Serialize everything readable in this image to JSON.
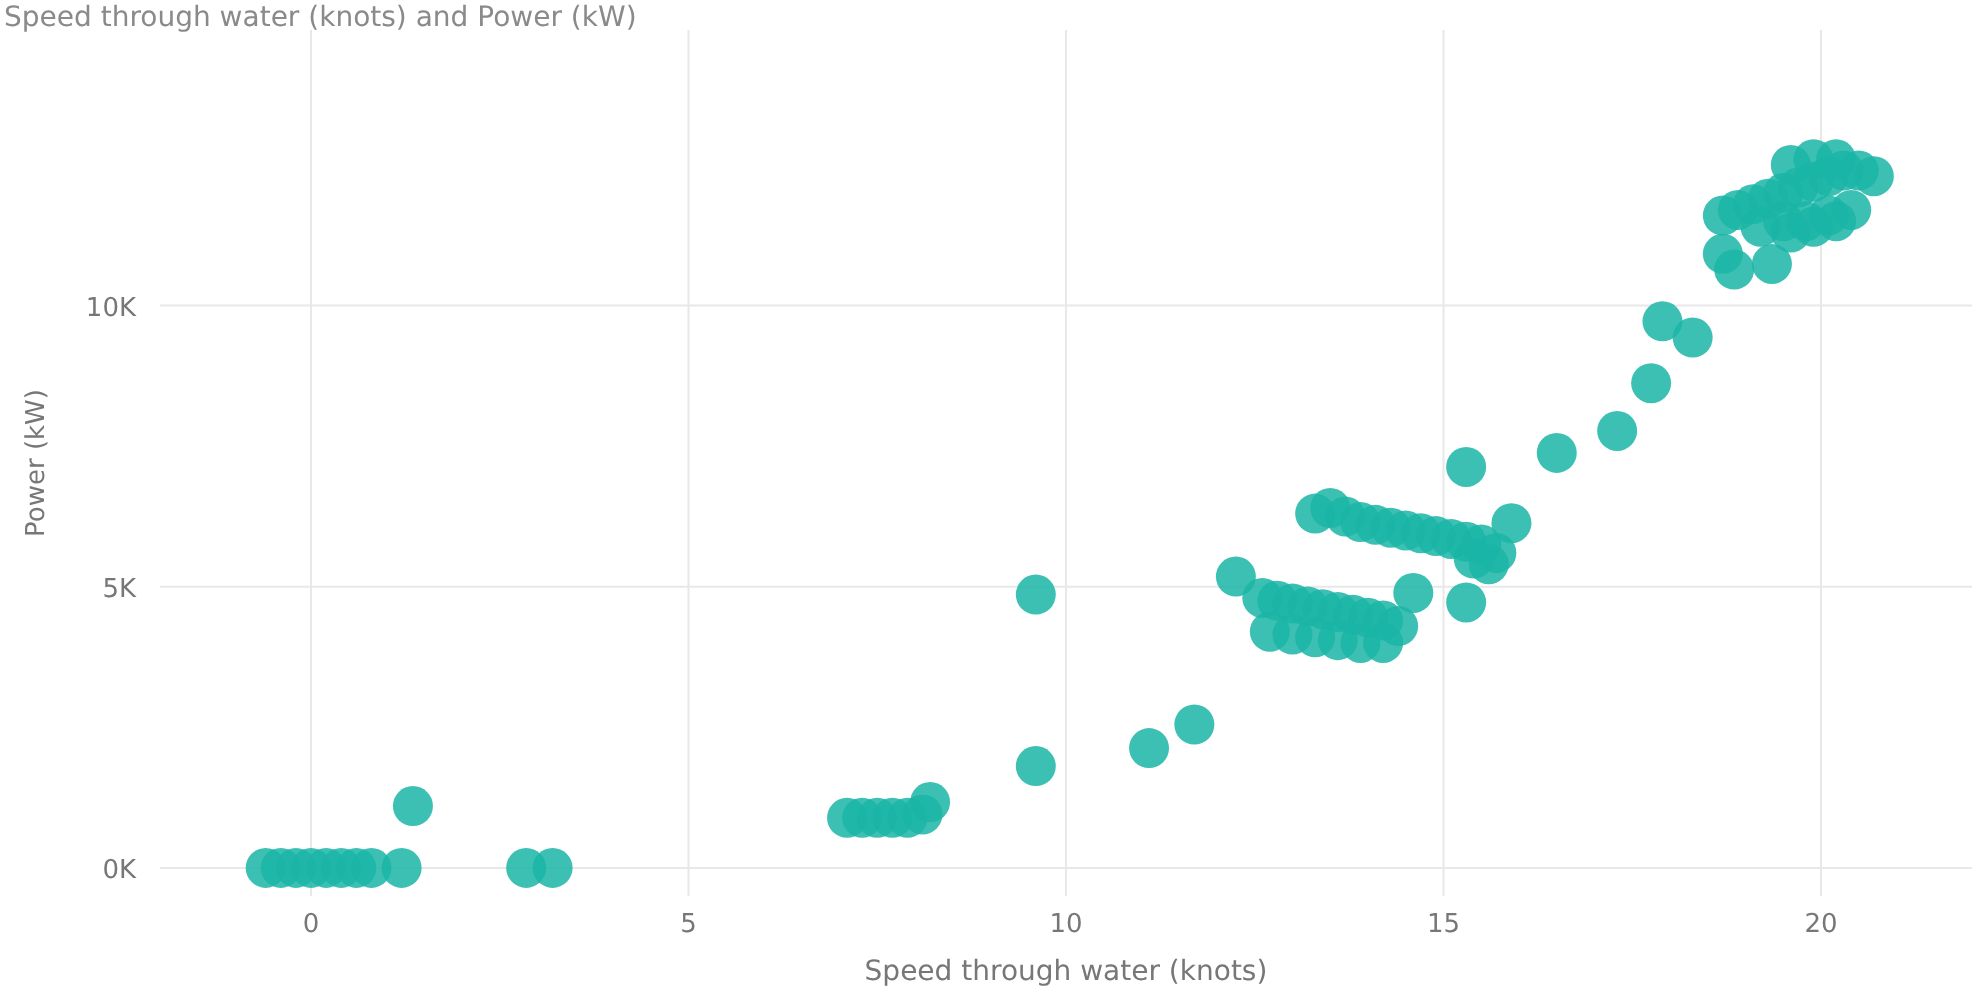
{
  "chart_data": {
    "type": "scatter",
    "title": "Speed through water (knots) and Power (kW)",
    "xlabel": "Speed through water (knots)",
    "ylabel": "Power (kW)",
    "xlim": [
      -2,
      22
    ],
    "ylim": [
      -500,
      14900
    ],
    "xticks": [
      0,
      5,
      10,
      15,
      20
    ],
    "yticks": [
      {
        "value": 0,
        "label": "0K"
      },
      {
        "value": 5000,
        "label": "5K"
      },
      {
        "value": 10000,
        "label": "10K"
      }
    ],
    "grid": true,
    "marker": "circle",
    "x": [
      -0.6,
      -0.4,
      -0.2,
      0,
      0.2,
      0.4,
      0.6,
      0.8,
      1.2,
      1.35,
      2.85,
      3.2,
      7.1,
      7.3,
      7.5,
      7.7,
      7.9,
      8.1,
      8.2,
      9.6,
      9.6,
      11.1,
      11.7,
      12.25,
      12.6,
      12.8,
      13.0,
      13.2,
      13.4,
      13.6,
      13.8,
      14.0,
      14.2,
      14.4,
      12.7,
      13.0,
      13.3,
      13.6,
      13.9,
      14.2,
      13.3,
      13.5,
      13.7,
      13.9,
      14.1,
      14.3,
      14.5,
      14.7,
      14.9,
      15.1,
      15.3,
      15.5,
      15.7,
      15.4,
      15.6,
      14.6,
      15.3,
      15.3,
      15.9,
      16.5,
      17.3,
      17.75,
      17.9,
      18.3,
      18.7,
      18.85,
      19.35,
      18.7,
      18.9,
      19.1,
      19.3,
      19.5,
      19.7,
      19.9,
      20.1,
      20.3,
      20.5,
      20.7,
      19.2,
      19.5,
      19.8,
      20.1,
      20.4,
      19.6,
      19.9,
      20.2,
      19.6,
      19.9,
      20.2
    ],
    "values": [
      0,
      0,
      0,
      0,
      0,
      0,
      0,
      0,
      0,
      1100,
      0,
      0,
      890,
      890,
      890,
      890,
      890,
      950,
      1170,
      4860,
      1810,
      2130,
      2550,
      5180,
      4800,
      4750,
      4700,
      4650,
      4600,
      4550,
      4500,
      4450,
      4400,
      4300,
      4200,
      4150,
      4100,
      4050,
      4000,
      4000,
      6300,
      6400,
      6250,
      6150,
      6100,
      6050,
      6000,
      5950,
      5900,
      5850,
      5800,
      5750,
      5600,
      5500,
      5400,
      4890,
      7130,
      4720,
      6130,
      7380,
      7770,
      8620,
      9720,
      9430,
      10920,
      10640,
      10740,
      11600,
      11700,
      11800,
      11900,
      12000,
      12100,
      12200,
      12300,
      12400,
      12400,
      12300,
      11400,
      11500,
      11500,
      11600,
      11700,
      12500,
      12600,
      12600,
      11300,
      11400,
      11500
    ],
    "color": "#1ab5a6"
  }
}
